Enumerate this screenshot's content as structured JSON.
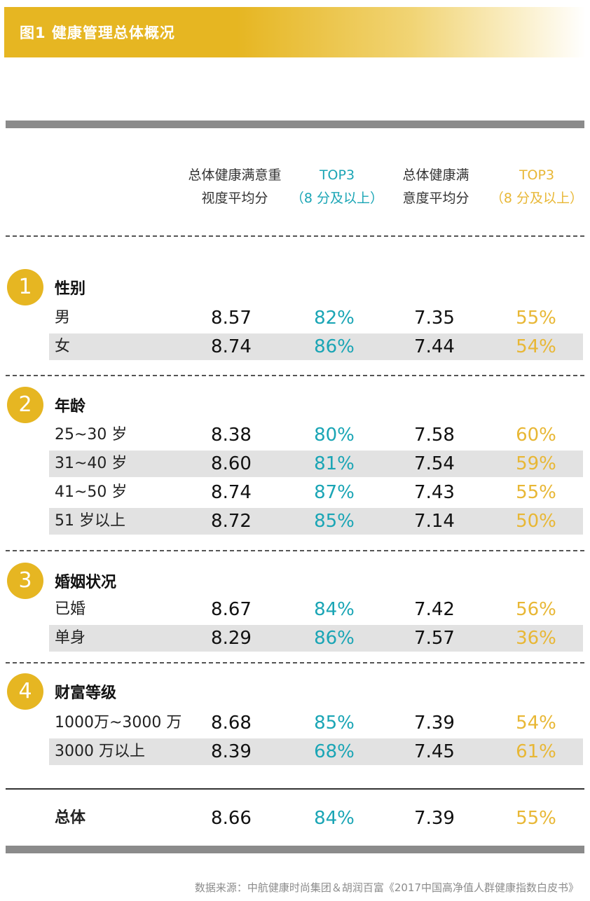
{
  "title": "图1 健康管理总体概况",
  "headers": {
    "col1": [
      "总体健康满意重",
      "视度平均分"
    ],
    "col2": [
      "TOP3",
      "（8 分及以上）"
    ],
    "col3": [
      "总体健康满",
      "意度平均分"
    ],
    "col4": [
      "TOP3",
      "（8 分及以上）"
    ]
  },
  "colors": {
    "accent": "#e6b622",
    "teal": "#1aa5b5",
    "gold": "#e8b735",
    "rule": "#8b8b8b",
    "shade": "#e2e2e2"
  },
  "chart_data": {
    "type": "table",
    "title": "图1 健康管理总体概况",
    "columns": [
      "总体健康满意重视度平均分",
      "TOP3（8 分及以上）",
      "总体健康满意度平均分",
      "TOP3（8 分及以上）"
    ],
    "groups": [
      {
        "number": "1",
        "title": "性别",
        "rows": [
          {
            "label": "男",
            "values": [
              "8.57",
              "82%",
              "7.35",
              "55%"
            ]
          },
          {
            "label": "女",
            "values": [
              "8.74",
              "86%",
              "7.44",
              "54%"
            ]
          }
        ]
      },
      {
        "number": "2",
        "title": "年龄",
        "rows": [
          {
            "label": "25~30 岁",
            "values": [
              "8.38",
              "80%",
              "7.58",
              "60%"
            ]
          },
          {
            "label": "31~40 岁",
            "values": [
              "8.60",
              "81%",
              "7.54",
              "59%"
            ]
          },
          {
            "label": "41~50 岁",
            "values": [
              "8.74",
              "87%",
              "7.43",
              "55%"
            ]
          },
          {
            "label": "51 岁以上",
            "values": [
              "8.72",
              "85%",
              "7.14",
              "50%"
            ]
          }
        ]
      },
      {
        "number": "3",
        "title": "婚姻状况",
        "rows": [
          {
            "label": "已婚",
            "values": [
              "8.67",
              "84%",
              "7.42",
              "56%"
            ]
          },
          {
            "label": "单身",
            "values": [
              "8.29",
              "86%",
              "7.57",
              "36%"
            ]
          }
        ]
      },
      {
        "number": "4",
        "title": "财富等级",
        "rows": [
          {
            "label": "1000万~3000 万",
            "values": [
              "8.68",
              "85%",
              "7.39",
              "54%"
            ]
          },
          {
            "label": "3000 万以上",
            "values": [
              "8.39",
              "68%",
              "7.45",
              "61%"
            ]
          }
        ]
      }
    ],
    "total": {
      "label": "总体",
      "values": [
        "8.66",
        "84%",
        "7.39",
        "55%"
      ]
    }
  },
  "source": "数据来源：中航健康时尚集团＆胡润百富《2017中国高净值人群健康指数白皮书》"
}
